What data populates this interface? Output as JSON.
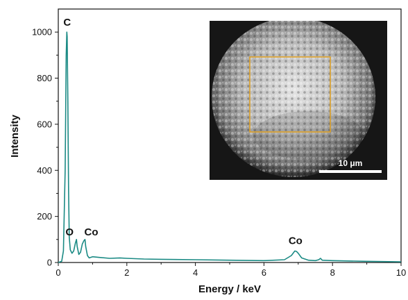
{
  "chart_data": {
    "type": "line",
    "title": "",
    "xlabel": "Energy / keV",
    "ylabel": "Intensity",
    "xlim": [
      0,
      10
    ],
    "ylim": [
      0,
      1100
    ],
    "xticks": [
      0,
      2,
      4,
      6,
      8,
      10
    ],
    "yticks": [
      0,
      200,
      400,
      600,
      800,
      1000
    ],
    "grid": false,
    "line_color": "#1a8a84",
    "series": [
      {
        "x": [
          0,
          0.1,
          0.15,
          0.2,
          0.23,
          0.25,
          0.26,
          0.28,
          0.3,
          0.32,
          0.35,
          0.4,
          0.45,
          0.5,
          0.53,
          0.55,
          0.6,
          0.65,
          0.7,
          0.75,
          0.78,
          0.8,
          0.85,
          0.9,
          1.0,
          1.2,
          1.5,
          1.8,
          2.0,
          2.5,
          3.0,
          4.0,
          5.0,
          6.0,
          6.6,
          6.8,
          6.9,
          6.95,
          7.0,
          7.1,
          7.3,
          7.5,
          7.6,
          7.65,
          7.7,
          8.0,
          9.0,
          10.0
        ],
        "y": [
          0,
          5,
          50,
          400,
          900,
          1000,
          980,
          700,
          320,
          110,
          55,
          40,
          50,
          85,
          100,
          70,
          35,
          45,
          80,
          95,
          100,
          70,
          30,
          20,
          25,
          22,
          18,
          20,
          18,
          15,
          14,
          12,
          10,
          8,
          12,
          30,
          50,
          48,
          40,
          20,
          10,
          8,
          12,
          18,
          10,
          8,
          5,
          3
        ]
      }
    ],
    "peak_labels": [
      {
        "text": "C",
        "x": 0.26,
        "y": 1000
      },
      {
        "text": "O",
        "x": 0.53,
        "y": 100
      },
      {
        "text": "Co",
        "x": 0.78,
        "y": 100
      },
      {
        "text": "Co",
        "x": 6.92,
        "y": 50
      }
    ],
    "inset": {
      "type": "sem-micrograph",
      "scale_bar_label": "10 μm",
      "selection_box_color": "#e0a020"
    }
  }
}
